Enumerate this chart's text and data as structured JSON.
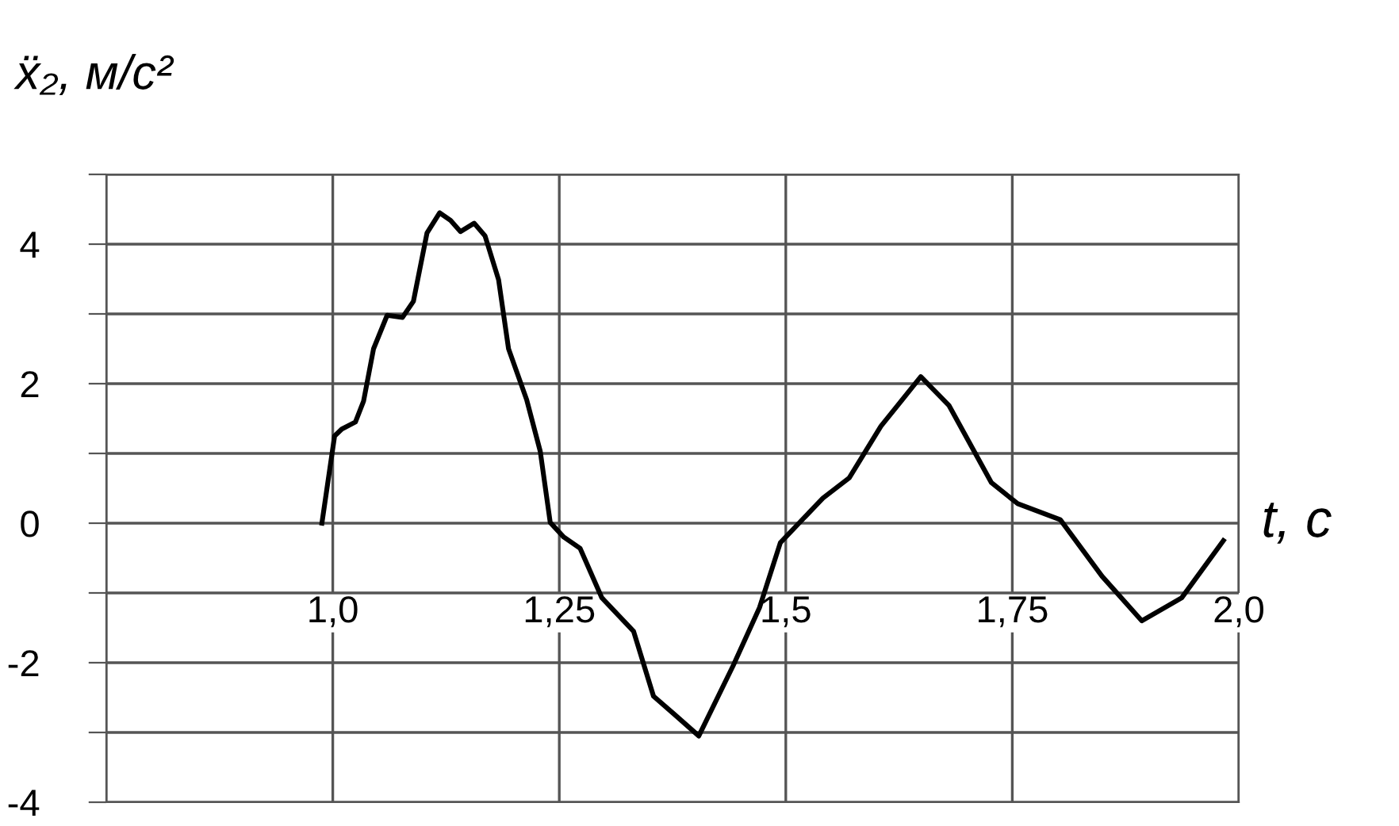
{
  "chart_data": {
    "type": "line",
    "ylabel": "ẍ₂, м/с²",
    "xlabel": "t, с",
    "x": [
      0.988,
      1.002,
      1.01,
      1.025,
      1.034,
      1.045,
      1.06,
      1.077,
      1.089,
      1.104,
      1.118,
      1.13,
      1.141,
      1.156,
      1.168,
      1.183,
      1.194,
      1.214,
      1.229,
      1.24,
      1.255,
      1.273,
      1.297,
      1.332,
      1.354,
      1.377,
      1.404,
      1.442,
      1.471,
      1.494,
      1.541,
      1.57,
      1.605,
      1.649,
      1.68,
      1.727,
      1.756,
      1.803,
      1.849,
      1.893,
      1.937,
      1.983
    ],
    "series": [
      {
        "color": "#000000",
        "values": [
          0,
          1.25,
          1.35,
          1.45,
          1.75,
          2.5,
          2.98,
          2.95,
          3.18,
          4.16,
          4.45,
          4.34,
          4.18,
          4.3,
          4.12,
          3.49,
          2.5,
          1.77,
          1.03,
          0.01,
          -0.2,
          -0.36,
          -1.07,
          -1.55,
          -2.48,
          -2.74,
          -3.05,
          -2.04,
          -1.21,
          -0.28,
          0.36,
          0.65,
          1.39,
          2.1,
          1.69,
          0.58,
          0.28,
          0.05,
          -0.76,
          -1.4,
          -1.07,
          -0.25
        ]
      }
    ],
    "xlim": [
      0.75,
      2.0
    ],
    "xticks": [
      {
        "value": 0.75,
        "label": null
      },
      {
        "value": 1.0,
        "label": "1,0"
      },
      {
        "value": 1.25,
        "label": "1,25"
      },
      {
        "value": 1.5,
        "label": "1,5"
      },
      {
        "value": 1.75,
        "label": "1,75"
      },
      {
        "value": 2.0,
        "label": "2,0"
      }
    ],
    "ylim": [
      -4,
      5
    ],
    "yticks": [
      -4,
      {
        "value": -3,
        "label": null
      },
      -2,
      {
        "value": -1,
        "label": null
      },
      0,
      {
        "value": 1,
        "label": null
      },
      2,
      {
        "value": 3,
        "label": null
      },
      4,
      {
        "value": 5,
        "label": null
      }
    ],
    "grid": true,
    "line_style": "solid",
    "marker": "none"
  }
}
